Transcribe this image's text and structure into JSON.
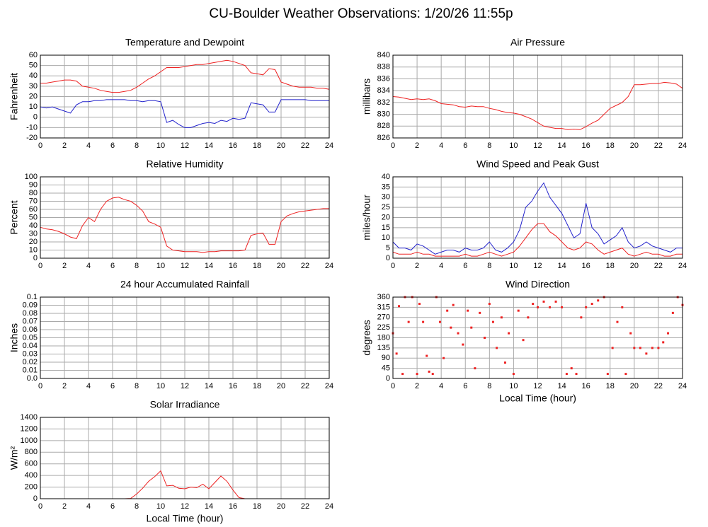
{
  "title": "CU-Boulder Weather Observations: 1/20/26 11:55p",
  "chart_data": [
    {
      "type": "line",
      "title": "Temperature and Dewpoint",
      "ylabel": "Fahrenheit",
      "xlim": [
        0,
        24
      ],
      "xticks": [
        0,
        2,
        4,
        6,
        8,
        10,
        12,
        14,
        16,
        18,
        20,
        22,
        24
      ],
      "ylim": [
        -20,
        60
      ],
      "yticks": [
        -20,
        -10,
        0,
        10,
        20,
        30,
        40,
        50,
        60
      ],
      "grid": true,
      "x": [
        0,
        0.5,
        1,
        1.5,
        2,
        2.5,
        3,
        3.5,
        4,
        4.5,
        5,
        5.5,
        6,
        6.5,
        7,
        7.5,
        8,
        8.5,
        9,
        9.5,
        10,
        10.5,
        11,
        11.5,
        12,
        12.5,
        13,
        13.5,
        14,
        14.5,
        15,
        15.5,
        16,
        16.5,
        17,
        17.5,
        18,
        18.5,
        19,
        19.5,
        20,
        20.5,
        21,
        21.5,
        22,
        22.5,
        23,
        23.5,
        24
      ],
      "series": [
        {
          "color": "#ee2222",
          "values": [
            33,
            33,
            34,
            35,
            36,
            36,
            35,
            30,
            29,
            28,
            26,
            25,
            24,
            24,
            25,
            26,
            29,
            33,
            37,
            40,
            44,
            48,
            48,
            48,
            49,
            50,
            51,
            51,
            52,
            53,
            54,
            55,
            54,
            52,
            50,
            43,
            42,
            41,
            47,
            46,
            34,
            32,
            30,
            29,
            29,
            29,
            28,
            28,
            27
          ]
        },
        {
          "color": "#2222cc",
          "values": [
            10,
            9,
            10,
            8,
            6,
            4,
            12,
            15,
            15,
            16,
            16,
            17,
            17,
            17,
            17,
            16,
            16,
            15,
            16,
            16,
            15,
            -5,
            -3,
            -7,
            -10,
            -10,
            -8,
            -6,
            -5,
            -6,
            -3,
            -4,
            -1,
            -2,
            -1,
            14,
            13,
            12,
            5,
            5,
            17,
            17,
            17,
            17,
            17,
            16,
            16,
            16,
            16
          ]
        }
      ]
    },
    {
      "type": "line",
      "title": "Air Pressure",
      "ylabel": "millibars",
      "xlim": [
        0,
        24
      ],
      "xticks": [
        0,
        2,
        4,
        6,
        8,
        10,
        12,
        14,
        16,
        18,
        20,
        22,
        24
      ],
      "ylim": [
        826,
        840
      ],
      "yticks": [
        826,
        828,
        830,
        832,
        834,
        836,
        838,
        840
      ],
      "grid": true,
      "x": [
        0,
        0.5,
        1,
        1.5,
        2,
        2.5,
        3,
        3.5,
        4,
        4.5,
        5,
        5.5,
        6,
        6.5,
        7,
        7.5,
        8,
        8.5,
        9,
        9.5,
        10,
        10.5,
        11,
        11.5,
        12,
        12.5,
        13,
        13.5,
        14,
        14.5,
        15,
        15.5,
        16,
        16.5,
        17,
        17.5,
        18,
        18.5,
        19,
        19.5,
        20,
        20.5,
        21,
        21.5,
        22,
        22.5,
        23,
        23.5,
        24
      ],
      "series": [
        {
          "color": "#ee2222",
          "values": [
            833,
            832.9,
            832.7,
            832.5,
            832.6,
            832.5,
            832.6,
            832.3,
            831.8,
            831.7,
            831.6,
            831.3,
            831.2,
            831.4,
            831.3,
            831.3,
            831,
            830.8,
            830.5,
            830.3,
            830.2,
            830,
            829.6,
            829.2,
            828.6,
            828,
            827.8,
            827.6,
            827.6,
            827.4,
            827.5,
            827.4,
            827.9,
            828.5,
            829,
            830,
            831,
            831.5,
            832,
            833,
            835,
            835,
            835.1,
            835.2,
            835.2,
            835.4,
            835.3,
            835.1,
            834.4
          ]
        }
      ]
    },
    {
      "type": "line",
      "title": "Relative Humidity",
      "ylabel": "Percent",
      "xlim": [
        0,
        24
      ],
      "xticks": [
        0,
        2,
        4,
        6,
        8,
        10,
        12,
        14,
        16,
        18,
        20,
        22,
        24
      ],
      "ylim": [
        0,
        100
      ],
      "yticks": [
        0,
        10,
        20,
        30,
        40,
        50,
        60,
        70,
        80,
        90,
        100
      ],
      "grid": true,
      "x": [
        0,
        0.5,
        1,
        1.5,
        2,
        2.5,
        3,
        3.5,
        4,
        4.5,
        5,
        5.5,
        6,
        6.5,
        7,
        7.5,
        8,
        8.5,
        9,
        9.5,
        10,
        10.5,
        11,
        11.5,
        12,
        12.5,
        13,
        13.5,
        14,
        14.5,
        15,
        15.5,
        16,
        16.5,
        17,
        17.5,
        18,
        18.5,
        19,
        19.5,
        20,
        20.5,
        21,
        21.5,
        22,
        22.5,
        23,
        23.5,
        24
      ],
      "series": [
        {
          "color": "#ee2222",
          "values": [
            38,
            36,
            35,
            33,
            30,
            26,
            24,
            40,
            50,
            45,
            60,
            70,
            74,
            75,
            72,
            70,
            65,
            58,
            45,
            42,
            38,
            15,
            10,
            9,
            8,
            8,
            8,
            7,
            8,
            8,
            9,
            9,
            9,
            9,
            10,
            28,
            30,
            31,
            17,
            17,
            45,
            52,
            55,
            57,
            58,
            59,
            60,
            61,
            61
          ]
        }
      ]
    },
    {
      "type": "line",
      "title": "Wind Speed and Peak Gust",
      "ylabel": "miles/hour",
      "xlim": [
        0,
        24
      ],
      "xticks": [
        0,
        2,
        4,
        6,
        8,
        10,
        12,
        14,
        16,
        18,
        20,
        22,
        24
      ],
      "ylim": [
        0,
        40
      ],
      "yticks": [
        0,
        5,
        10,
        15,
        20,
        25,
        30,
        35,
        40
      ],
      "grid": true,
      "x": [
        0,
        0.5,
        1,
        1.5,
        2,
        2.5,
        3,
        3.5,
        4,
        4.5,
        5,
        5.5,
        6,
        6.5,
        7,
        7.5,
        8,
        8.5,
        9,
        9.5,
        10,
        10.5,
        11,
        11.5,
        12,
        12.5,
        13,
        13.5,
        14,
        14.5,
        15,
        15.5,
        16,
        16.5,
        17,
        17.5,
        18,
        18.5,
        19,
        19.5,
        20,
        20.5,
        21,
        21.5,
        22,
        22.5,
        23,
        23.5,
        24
      ],
      "series": [
        {
          "color": "#2222cc",
          "values": [
            8,
            5,
            5,
            4,
            7,
            6,
            4,
            2,
            3,
            4,
            4,
            3,
            5,
            4,
            4,
            5,
            8,
            4,
            3,
            5,
            8,
            14,
            25,
            28,
            33,
            37,
            30,
            26,
            22,
            16,
            10,
            12,
            27,
            15,
            12,
            7,
            9,
            11,
            15,
            8,
            5,
            6,
            8,
            6,
            5,
            4,
            3,
            5,
            5
          ]
        },
        {
          "color": "#ee2222",
          "values": [
            3,
            2,
            2,
            2,
            3,
            2,
            2,
            1,
            1,
            1,
            1,
            1,
            2,
            1,
            1,
            2,
            3,
            2,
            1,
            2,
            3,
            6,
            10,
            14,
            17,
            17,
            13,
            11,
            8,
            5,
            4,
            5,
            8,
            7,
            4,
            2,
            3,
            4,
            5,
            2,
            1,
            2,
            3,
            2,
            2,
            1,
            1,
            2,
            2
          ]
        }
      ]
    },
    {
      "type": "line",
      "title": "24 hour Accumulated Rainfall",
      "ylabel": "Inches",
      "xlim": [
        0,
        24
      ],
      "xticks": [
        0,
        2,
        4,
        6,
        8,
        10,
        12,
        14,
        16,
        18,
        20,
        22,
        24
      ],
      "ylim": [
        0,
        0.1
      ],
      "yticks": [
        {
          "value": 0,
          "label": "0.0"
        },
        0.01,
        0.02,
        0.03,
        0.04,
        0.05,
        0.06,
        0.07,
        0.08,
        0.09,
        0.1
      ],
      "grid": true,
      "x": [
        0,
        24
      ],
      "series": [
        {
          "color": "#ee2222",
          "values": [
            0,
            0
          ]
        }
      ]
    },
    {
      "type": "scatter",
      "title": "Wind Direction",
      "ylabel": "degrees",
      "xlabel": "Local Time (hour)",
      "xlim": [
        0,
        24
      ],
      "xticks": [
        0,
        2,
        4,
        6,
        8,
        10,
        12,
        14,
        16,
        18,
        20,
        22,
        24
      ],
      "ylim": [
        0,
        360
      ],
      "yticks": [
        0,
        45,
        90,
        135,
        180,
        225,
        270,
        315,
        360
      ],
      "grid": true,
      "x": [
        0,
        0.3,
        0.5,
        0.8,
        1,
        1.3,
        1.6,
        2,
        2.2,
        2.5,
        2.8,
        3,
        3.3,
        3.6,
        3.9,
        4.2,
        4.5,
        4.8,
        5,
        5.4,
        5.8,
        6.2,
        6.5,
        6.8,
        7.2,
        7.6,
        8,
        8.3,
        8.6,
        9,
        9.3,
        9.6,
        10,
        10.4,
        10.8,
        11.2,
        11.6,
        12,
        12.5,
        13,
        13.5,
        14,
        14.4,
        14.8,
        15.2,
        15.6,
        16,
        16.5,
        17,
        17.5,
        17.8,
        18.2,
        18.6,
        19,
        19.3,
        19.7,
        20,
        20.5,
        21,
        21.5,
        22,
        22.4,
        22.8,
        23.2,
        23.6,
        24
      ],
      "series": [
        {
          "color": "#ee2222",
          "values": [
            200,
            110,
            320,
            20,
            360,
            250,
            360,
            20,
            330,
            250,
            100,
            30,
            20,
            360,
            250,
            90,
            300,
            225,
            325,
            200,
            150,
            300,
            225,
            45,
            290,
            180,
            330,
            250,
            135,
            270,
            70,
            200,
            20,
            300,
            170,
            270,
            330,
            315,
            340,
            315,
            340,
            315,
            20,
            45,
            20,
            270,
            315,
            330,
            345,
            360,
            20,
            135,
            250,
            315,
            20,
            200,
            135,
            135,
            110,
            135,
            135,
            160,
            200,
            290,
            360,
            325
          ]
        }
      ]
    },
    {
      "type": "line",
      "title": "Solar Irradiance",
      "ylabel": "W/m²",
      "xlabel": "Local Time (hour)",
      "xlim": [
        0,
        24
      ],
      "xticks": [
        0,
        2,
        4,
        6,
        8,
        10,
        12,
        14,
        16,
        18,
        20,
        22,
        24
      ],
      "ylim": [
        0,
        1400
      ],
      "yticks": [
        0,
        200,
        400,
        600,
        800,
        1000,
        1200,
        1400
      ],
      "grid": true,
      "x": [
        0,
        0.5,
        1,
        1.5,
        2,
        2.5,
        3,
        3.5,
        4,
        4.5,
        5,
        5.5,
        6,
        6.5,
        7,
        7.5,
        8,
        8.5,
        9,
        9.5,
        10,
        10.5,
        11,
        11.5,
        12,
        12.5,
        13,
        13.5,
        14,
        14.5,
        15,
        15.5,
        16,
        16.5,
        17,
        17.5,
        18,
        18.5,
        19,
        19.5,
        20,
        20.5,
        21,
        21.5,
        22,
        22.5,
        23,
        23.5,
        24
      ],
      "series": [
        {
          "color": "#ee2222",
          "values": [
            0,
            0,
            0,
            0,
            0,
            0,
            0,
            0,
            0,
            0,
            0,
            0,
            0,
            0,
            0,
            5,
            80,
            180,
            300,
            380,
            480,
            220,
            230,
            180,
            170,
            200,
            190,
            250,
            170,
            280,
            390,
            300,
            150,
            20,
            0,
            0,
            0,
            0,
            0,
            0,
            0,
            0,
            0,
            0,
            0,
            0,
            0,
            0,
            0
          ]
        }
      ]
    }
  ]
}
